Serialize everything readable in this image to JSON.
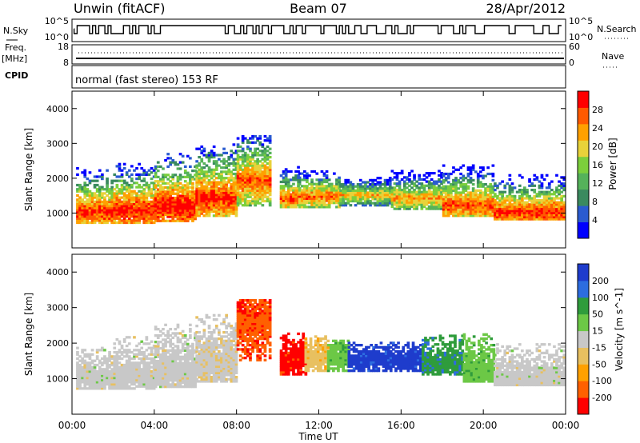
{
  "header": {
    "station": "Unwin (fitACF)",
    "beam": "Beam 07",
    "date": "28/Apr/2012"
  },
  "status_panels": {
    "nsky_label": "N.Sky",
    "nsky_ticks": [
      "10^5",
      "10^0"
    ],
    "nsearch_label": "N.Search",
    "nsearch_ticks": [
      "10^5",
      "10^0"
    ],
    "freq_label": "Freq.",
    "freq_unit": "[MHz]",
    "freq_ticks": [
      "18",
      "8"
    ],
    "nave_label": "Nave",
    "nave_ticks": [
      "60",
      "0"
    ],
    "cpid_label": "CPID",
    "cpid_text": "normal (fast stereo) 153 RF"
  },
  "chart_data": [
    {
      "type": "heatmap",
      "quantity": "power",
      "ylabel": "Slant Range [km]",
      "xlabel": "Time UT",
      "ylim": [
        0,
        4500
      ],
      "yticks": [
        1000,
        2000,
        3000,
        4000
      ],
      "colorbar_label": "Power [dB]",
      "colorbar_ticks": [
        4,
        8,
        12,
        16,
        20,
        24,
        28
      ],
      "colorscale": [
        "#0000ff",
        "#2a5bd0",
        "#3a8a5f",
        "#55b25a",
        "#7ccf3c",
        "#e8d23a",
        "#ffa000",
        "#ff5a00",
        "#ff0000"
      ],
      "crange": [
        0,
        32
      ],
      "echoes": [
        {
          "t0": 0.2,
          "t1": 2.0,
          "r0": 700,
          "r1": 2300,
          "core": 1000,
          "v": 30
        },
        {
          "t0": 2.0,
          "t1": 4.0,
          "r0": 700,
          "r1": 2400,
          "core": 1050,
          "v": 31
        },
        {
          "t0": 4.0,
          "t1": 6.0,
          "r0": 750,
          "r1": 2700,
          "core": 1150,
          "v": 32
        },
        {
          "t0": 6.0,
          "t1": 8.0,
          "r0": 900,
          "r1": 3000,
          "core": 1400,
          "v": 30
        },
        {
          "t0": 8.0,
          "t1": 9.6,
          "r0": 1200,
          "r1": 3200,
          "core": 1900,
          "v": 28
        },
        {
          "t0": 10.1,
          "t1": 11.0,
          "r0": 1150,
          "r1": 2300,
          "core": 1400,
          "v": 28
        },
        {
          "t0": 11.0,
          "t1": 13.0,
          "r0": 1150,
          "r1": 2200,
          "core": 1450,
          "v": 27
        },
        {
          "t0": 13.0,
          "t1": 15.5,
          "r0": 1200,
          "r1": 2000,
          "core": 1500,
          "v": 22
        },
        {
          "t0": 15.5,
          "t1": 18.0,
          "r0": 1100,
          "r1": 2200,
          "core": 1400,
          "v": 24
        },
        {
          "t0": 18.0,
          "t1": 20.5,
          "r0": 900,
          "r1": 2400,
          "core": 1200,
          "v": 28
        },
        {
          "t0": 20.5,
          "t1": 23.9,
          "r0": 800,
          "r1": 2100,
          "core": 1000,
          "v": 30
        }
      ]
    },
    {
      "type": "heatmap",
      "quantity": "velocity",
      "ylabel": "Slant Range [km]",
      "xlabel": "Time UT",
      "xticks": [
        "00:00",
        "04:00",
        "08:00",
        "12:00",
        "16:00",
        "20:00",
        "00:00"
      ],
      "xlim": [
        0,
        24
      ],
      "ylim": [
        0,
        4500
      ],
      "yticks": [
        1000,
        2000,
        3000,
        4000
      ],
      "colorbar_label": "Velocity [m s^-1]",
      "colorbar_ticks": [
        "200",
        "100",
        "50",
        "15",
        "-15",
        "-50",
        "-100",
        "-200"
      ],
      "colorscale": [
        "#ff0000",
        "#ff6000",
        "#ffa000",
        "#e8c060",
        "#c8c8c8",
        "#6cc846",
        "#2f9c3c",
        "#2d6de0",
        "#1e3ccc"
      ],
      "crange": [
        -250,
        250
      ],
      "echoes": [
        {
          "t0": 0.2,
          "t1": 2.0,
          "r0": 700,
          "r1": 1900,
          "core": 1000,
          "v": 0
        },
        {
          "t0": 2.0,
          "t1": 4.0,
          "r0": 700,
          "r1": 2200,
          "core": 1050,
          "v": 0
        },
        {
          "t0": 4.0,
          "t1": 6.0,
          "r0": 750,
          "r1": 2500,
          "core": 1150,
          "v": 0
        },
        {
          "t0": 6.0,
          "t1": 8.0,
          "r0": 900,
          "r1": 2800,
          "core": 1400,
          "v": -10
        },
        {
          "t0": 8.0,
          "t1": 9.6,
          "r0": 1500,
          "r1": 3200,
          "core": 2600,
          "v": -180
        },
        {
          "t0": 10.1,
          "t1": 11.3,
          "r0": 1100,
          "r1": 2300,
          "core": 1500,
          "v": -220
        },
        {
          "t0": 11.3,
          "t1": 12.4,
          "r0": 1200,
          "r1": 2200,
          "core": 1600,
          "v": -60
        },
        {
          "t0": 12.4,
          "t1": 13.4,
          "r0": 1200,
          "r1": 2100,
          "core": 1600,
          "v": 60
        },
        {
          "t0": 13.4,
          "t1": 17.0,
          "r0": 1200,
          "r1": 2000,
          "core": 1500,
          "v": 220
        },
        {
          "t0": 17.0,
          "t1": 19.0,
          "r0": 1100,
          "r1": 2200,
          "core": 1400,
          "v": 120
        },
        {
          "t0": 19.0,
          "t1": 20.5,
          "r0": 900,
          "r1": 2300,
          "core": 1200,
          "v": 60
        },
        {
          "t0": 20.5,
          "t1": 23.9,
          "r0": 800,
          "r1": 2000,
          "core": 1000,
          "v": 0
        }
      ]
    }
  ]
}
